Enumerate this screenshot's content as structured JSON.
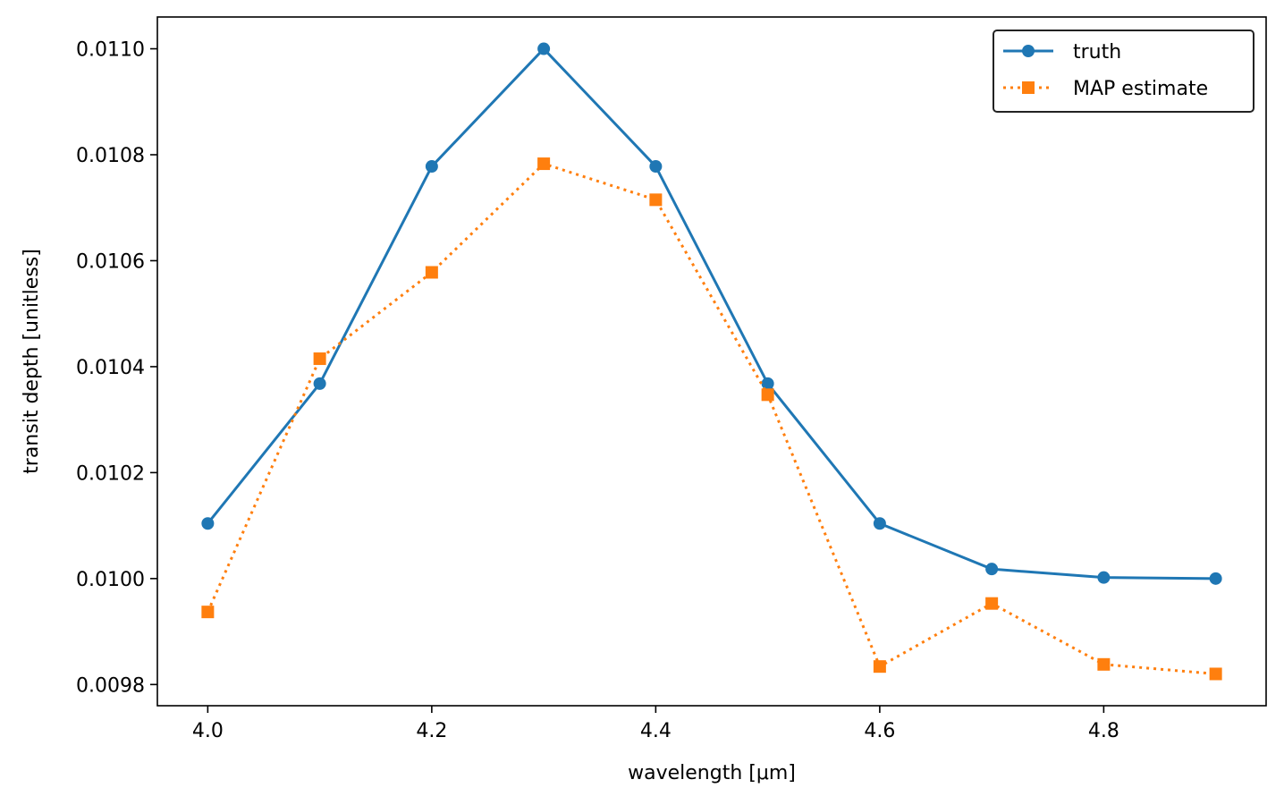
{
  "chart_data": {
    "type": "line",
    "xlabel": "wavelength [μm]",
    "ylabel": "transit depth [unitless]",
    "x": [
      4.0,
      4.1,
      4.2,
      4.3,
      4.4,
      4.5,
      4.6,
      4.7,
      4.8,
      4.9
    ],
    "xlim": [
      3.955,
      4.945
    ],
    "ylim": [
      0.00976,
      0.01106
    ],
    "xticks": [
      "4.0",
      "4.2",
      "4.4",
      "4.6",
      "4.8"
    ],
    "xtick_values": [
      4.0,
      4.2,
      4.4,
      4.6,
      4.8
    ],
    "yticks": [
      "0.0098",
      "0.0100",
      "0.0102",
      "0.0104",
      "0.0106",
      "0.0108",
      "0.0110"
    ],
    "ytick_values": [
      0.0098,
      0.01,
      0.0102,
      0.0104,
      0.0106,
      0.0108,
      0.011
    ],
    "grid": false,
    "legend_position": "top-right",
    "series": [
      {
        "name": "truth",
        "color": "#1f77b4",
        "marker": "circle",
        "line_style": "solid",
        "values": [
          0.010104,
          0.010368,
          0.010778,
          0.011,
          0.010778,
          0.010368,
          0.010104,
          0.010018,
          0.010002,
          0.01
        ]
      },
      {
        "name": "MAP estimate",
        "color": "#ff7f0e",
        "marker": "square",
        "line_style": "dotted",
        "values": [
          0.009937,
          0.010415,
          0.010578,
          0.010783,
          0.010715,
          0.010347,
          0.009834,
          0.009953,
          0.009838,
          0.00982
        ]
      }
    ]
  }
}
